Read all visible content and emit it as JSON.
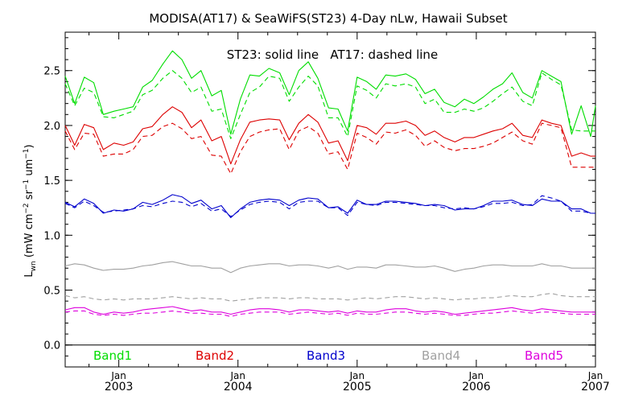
{
  "chart_data": {
    "type": "line",
    "title": "MODISA(AT17) & SeaWiFS(ST23) 4-Day nLw, Hawaii Subset",
    "annotation": "ST23: solid line   AT17: dashed line",
    "ylabel": {
      "main": "L",
      "sub": "wn",
      "units_open": " (mW cm",
      "exp1": "−2",
      "sr": " sr",
      "exp2": "−1",
      "um": " um",
      "exp3": "−1",
      "close": ")"
    },
    "ylim": [
      -0.2,
      2.85
    ],
    "xlim": [
      2002.55,
      2007.0
    ],
    "y_ticks": [
      {
        "value": 0.0,
        "label": "0.0"
      },
      {
        "value": 0.5,
        "label": "0.5"
      },
      {
        "value": 1.0,
        "label": "1.0"
      },
      {
        "value": 1.5,
        "label": "1.5"
      },
      {
        "value": 2.0,
        "label": "2.0"
      },
      {
        "value": 2.5,
        "label": "2.5"
      }
    ],
    "x_ticks": [
      {
        "value": 2003.0,
        "month": "Jan",
        "year": "2003"
      },
      {
        "value": 2004.0,
        "month": "Jan",
        "year": "2004"
      },
      {
        "value": 2005.0,
        "month": "Jan",
        "year": "2005"
      },
      {
        "value": 2006.0,
        "month": "Jan",
        "year": "2006"
      },
      {
        "value": 2007.0,
        "month": "Jan",
        "year": "2007"
      }
    ],
    "zero_line": 0.0,
    "x": [
      2002.55,
      2002.63,
      2002.71,
      2002.79,
      2002.87,
      2002.96,
      2003.04,
      2003.12,
      2003.2,
      2003.28,
      2003.37,
      2003.45,
      2003.53,
      2003.61,
      2003.69,
      2003.78,
      2003.86,
      2003.94,
      2004.02,
      2004.1,
      2004.18,
      2004.26,
      2004.35,
      2004.43,
      2004.51,
      2004.59,
      2004.67,
      2004.76,
      2004.84,
      2004.92,
      2005.0,
      2005.08,
      2005.16,
      2005.24,
      2005.32,
      2005.41,
      2005.49,
      2005.57,
      2005.65,
      2005.73,
      2005.82,
      2005.9,
      2005.98,
      2006.06,
      2006.14,
      2006.22,
      2006.3,
      2006.39,
      2006.47,
      2006.55,
      2006.63,
      2006.71,
      2006.8,
      2006.88,
      2006.96,
      2007.0
    ],
    "series": [
      {
        "legend": "Band1",
        "style": "solid",
        "color": "#00dd00",
        "values": [
          2.45,
          2.2,
          2.44,
          2.39,
          2.1,
          2.13,
          2.15,
          2.17,
          2.35,
          2.41,
          2.56,
          2.68,
          2.6,
          2.43,
          2.5,
          2.27,
          2.32,
          1.92,
          2.24,
          2.46,
          2.45,
          2.52,
          2.48,
          2.28,
          2.5,
          2.58,
          2.43,
          2.16,
          2.15,
          1.95,
          2.44,
          2.4,
          2.33,
          2.46,
          2.45,
          2.47,
          2.42,
          2.29,
          2.33,
          2.21,
          2.17,
          2.24,
          2.2,
          2.26,
          2.33,
          2.38,
          2.48,
          2.3,
          2.25,
          2.5,
          2.45,
          2.4,
          1.92,
          2.18,
          1.9,
          2.18
        ]
      },
      {
        "legend": "",
        "style": "dashed",
        "color": "#00dd00",
        "values": [
          2.38,
          2.18,
          2.34,
          2.3,
          2.08,
          2.07,
          2.1,
          2.13,
          2.28,
          2.32,
          2.43,
          2.5,
          2.43,
          2.3,
          2.35,
          2.13,
          2.15,
          1.88,
          2.1,
          2.3,
          2.35,
          2.45,
          2.43,
          2.22,
          2.35,
          2.45,
          2.36,
          2.07,
          2.07,
          1.9,
          2.36,
          2.32,
          2.25,
          2.38,
          2.36,
          2.38,
          2.35,
          2.2,
          2.24,
          2.12,
          2.12,
          2.15,
          2.13,
          2.16,
          2.22,
          2.29,
          2.35,
          2.22,
          2.18,
          2.48,
          2.42,
          2.37,
          1.96,
          1.95,
          1.95,
          1.95
        ]
      },
      {
        "legend": "Band2",
        "style": "solid",
        "color": "#dd0000",
        "values": [
          2.0,
          1.82,
          2.01,
          1.98,
          1.78,
          1.84,
          1.82,
          1.85,
          1.97,
          1.99,
          2.1,
          2.17,
          2.12,
          1.98,
          2.05,
          1.86,
          1.9,
          1.65,
          1.87,
          2.03,
          2.05,
          2.06,
          2.05,
          1.87,
          2.02,
          2.1,
          2.03,
          1.84,
          1.86,
          1.68,
          2.0,
          1.98,
          1.92,
          2.02,
          2.02,
          2.04,
          2.0,
          1.91,
          1.95,
          1.89,
          1.85,
          1.89,
          1.89,
          1.92,
          1.95,
          1.97,
          2.02,
          1.91,
          1.89,
          2.05,
          2.02,
          2.0,
          1.72,
          1.75,
          1.72,
          1.72
        ]
      },
      {
        "legend": "",
        "style": "dashed",
        "color": "#dd0000",
        "values": [
          1.95,
          1.78,
          1.93,
          1.92,
          1.72,
          1.74,
          1.74,
          1.78,
          1.9,
          1.91,
          1.99,
          2.02,
          1.97,
          1.88,
          1.9,
          1.73,
          1.72,
          1.56,
          1.76,
          1.9,
          1.94,
          1.96,
          1.97,
          1.78,
          1.95,
          1.99,
          1.93,
          1.74,
          1.76,
          1.6,
          1.93,
          1.89,
          1.83,
          1.94,
          1.93,
          1.96,
          1.91,
          1.81,
          1.86,
          1.8,
          1.77,
          1.79,
          1.79,
          1.81,
          1.84,
          1.89,
          1.94,
          1.86,
          1.83,
          2.02,
          2.0,
          1.98,
          1.62,
          1.62,
          1.62,
          1.62
        ]
      },
      {
        "legend": "Band3",
        "style": "solid",
        "color": "#0000cc",
        "values": [
          1.3,
          1.26,
          1.33,
          1.29,
          1.2,
          1.23,
          1.22,
          1.24,
          1.3,
          1.28,
          1.32,
          1.37,
          1.35,
          1.29,
          1.32,
          1.24,
          1.27,
          1.16,
          1.24,
          1.3,
          1.32,
          1.33,
          1.32,
          1.27,
          1.32,
          1.34,
          1.33,
          1.25,
          1.26,
          1.2,
          1.32,
          1.28,
          1.28,
          1.31,
          1.31,
          1.3,
          1.29,
          1.27,
          1.28,
          1.27,
          1.23,
          1.24,
          1.24,
          1.27,
          1.31,
          1.31,
          1.32,
          1.28,
          1.27,
          1.33,
          1.31,
          1.31,
          1.24,
          1.24,
          1.2,
          1.2
        ]
      },
      {
        "legend": "",
        "style": "dashed",
        "color": "#0000cc",
        "values": [
          1.29,
          1.25,
          1.31,
          1.27,
          1.21,
          1.22,
          1.23,
          1.24,
          1.27,
          1.26,
          1.29,
          1.31,
          1.3,
          1.26,
          1.29,
          1.22,
          1.24,
          1.17,
          1.23,
          1.28,
          1.3,
          1.31,
          1.3,
          1.24,
          1.3,
          1.31,
          1.31,
          1.25,
          1.25,
          1.18,
          1.3,
          1.28,
          1.27,
          1.3,
          1.3,
          1.29,
          1.28,
          1.27,
          1.27,
          1.25,
          1.24,
          1.25,
          1.24,
          1.26,
          1.29,
          1.29,
          1.3,
          1.27,
          1.28,
          1.36,
          1.34,
          1.31,
          1.22,
          1.22,
          1.2,
          1.2
        ]
      },
      {
        "legend": "Band4",
        "style": "solid",
        "color": "#a0a0a0",
        "values": [
          0.72,
          0.74,
          0.73,
          0.7,
          0.68,
          0.69,
          0.69,
          0.7,
          0.72,
          0.73,
          0.75,
          0.76,
          0.74,
          0.72,
          0.72,
          0.7,
          0.7,
          0.66,
          0.7,
          0.72,
          0.73,
          0.74,
          0.74,
          0.72,
          0.73,
          0.73,
          0.72,
          0.7,
          0.72,
          0.69,
          0.71,
          0.71,
          0.7,
          0.73,
          0.73,
          0.72,
          0.71,
          0.71,
          0.72,
          0.7,
          0.67,
          0.69,
          0.7,
          0.72,
          0.73,
          0.73,
          0.72,
          0.72,
          0.72,
          0.74,
          0.72,
          0.72,
          0.7,
          0.7,
          0.7,
          0.7
        ]
      },
      {
        "legend": "",
        "style": "dashed",
        "color": "#a0a0a0",
        "values": [
          0.45,
          0.43,
          0.44,
          0.42,
          0.41,
          0.42,
          0.41,
          0.42,
          0.42,
          0.42,
          0.43,
          0.44,
          0.43,
          0.42,
          0.43,
          0.42,
          0.42,
          0.4,
          0.41,
          0.42,
          0.43,
          0.43,
          0.43,
          0.42,
          0.43,
          0.43,
          0.42,
          0.42,
          0.42,
          0.41,
          0.42,
          0.43,
          0.42,
          0.43,
          0.44,
          0.44,
          0.43,
          0.42,
          0.43,
          0.42,
          0.41,
          0.42,
          0.42,
          0.43,
          0.43,
          0.44,
          0.45,
          0.44,
          0.44,
          0.46,
          0.47,
          0.45,
          0.44,
          0.44,
          0.44,
          0.44
        ]
      },
      {
        "legend": "Band5",
        "style": "solid",
        "color": "#dd00dd",
        "values": [
          0.32,
          0.34,
          0.34,
          0.3,
          0.28,
          0.3,
          0.29,
          0.3,
          0.32,
          0.33,
          0.34,
          0.35,
          0.33,
          0.31,
          0.32,
          0.3,
          0.3,
          0.28,
          0.3,
          0.32,
          0.33,
          0.33,
          0.32,
          0.3,
          0.32,
          0.32,
          0.31,
          0.3,
          0.31,
          0.29,
          0.31,
          0.3,
          0.3,
          0.32,
          0.33,
          0.33,
          0.31,
          0.3,
          0.31,
          0.3,
          0.28,
          0.29,
          0.3,
          0.31,
          0.32,
          0.33,
          0.34,
          0.32,
          0.31,
          0.33,
          0.32,
          0.31,
          0.3,
          0.3,
          0.3,
          0.3
        ]
      },
      {
        "legend": "",
        "style": "dashed",
        "color": "#dd00dd",
        "values": [
          0.3,
          0.31,
          0.31,
          0.28,
          0.27,
          0.28,
          0.27,
          0.28,
          0.29,
          0.29,
          0.3,
          0.31,
          0.3,
          0.29,
          0.29,
          0.28,
          0.28,
          0.26,
          0.28,
          0.29,
          0.3,
          0.3,
          0.3,
          0.28,
          0.29,
          0.3,
          0.29,
          0.28,
          0.29,
          0.27,
          0.29,
          0.28,
          0.28,
          0.29,
          0.3,
          0.3,
          0.29,
          0.28,
          0.29,
          0.28,
          0.27,
          0.27,
          0.28,
          0.29,
          0.29,
          0.3,
          0.31,
          0.3,
          0.29,
          0.3,
          0.3,
          0.29,
          0.28,
          0.28,
          0.28,
          0.28
        ]
      }
    ]
  }
}
